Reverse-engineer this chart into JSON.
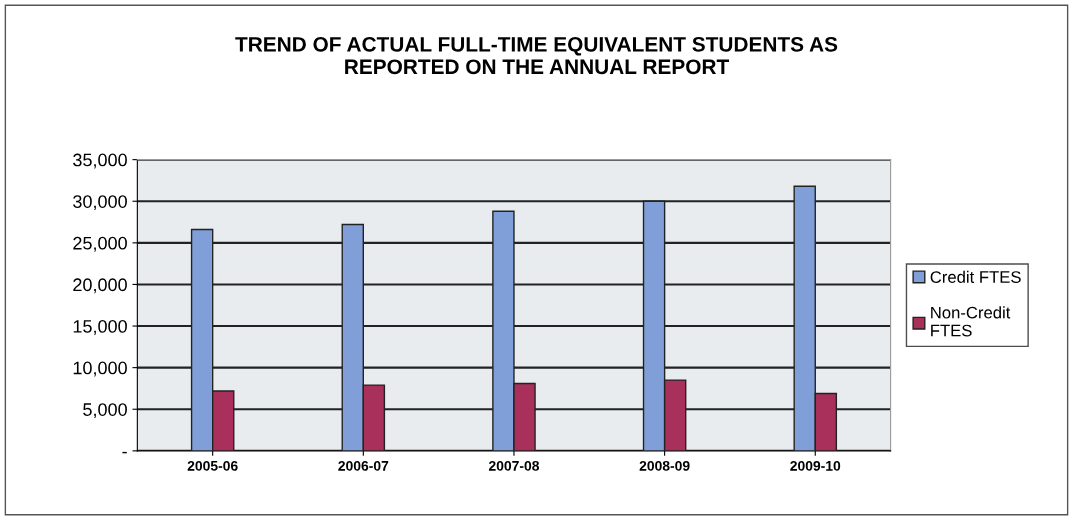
{
  "chart_data": {
    "type": "bar",
    "title": "TREND OF ACTUAL FULL-TIME EQUIVALENT STUDENTS AS\nREPORTED ON THE ANNUAL REPORT",
    "categories": [
      "2005-06",
      "2006-07",
      "2007-08",
      "2008-09",
      "2009-10"
    ],
    "series": [
      {
        "name": "Credit FTES",
        "color": "#809fd8",
        "values": [
          26600,
          27200,
          28800,
          30000,
          31800
        ]
      },
      {
        "name": "Non-Credit\nFTES",
        "color": "#a8305a",
        "values": [
          7200,
          7900,
          8100,
          8500,
          6900
        ]
      }
    ],
    "ylim": [
      0,
      35000
    ],
    "yticks": [
      {
        "value": 0,
        "label": "-"
      },
      {
        "value": 5000,
        "label": "5,000"
      },
      {
        "value": 10000,
        "label": "10,000"
      },
      {
        "value": 15000,
        "label": "15,000"
      },
      {
        "value": 20000,
        "label": "20,000"
      },
      {
        "value": 25000,
        "label": "25,000"
      },
      {
        "value": 30000,
        "label": "30,000"
      },
      {
        "value": 35000,
        "label": "35,000"
      }
    ],
    "grid": "y",
    "legend": "right"
  }
}
